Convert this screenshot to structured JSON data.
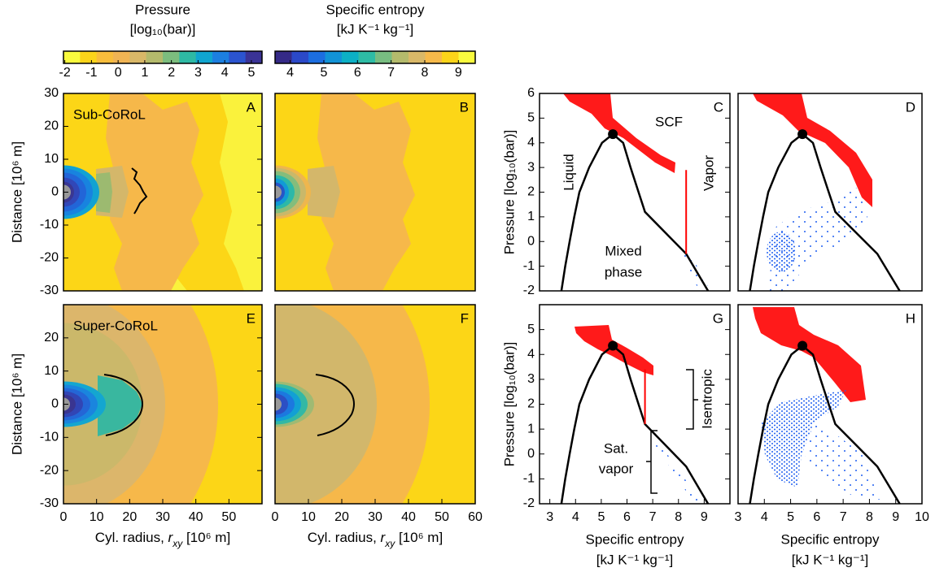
{
  "colorbars": [
    {
      "title": "Pressure",
      "unit": "[log₁₀(bar)]",
      "lim": [
        -2.05,
        5.4
      ],
      "ticks": [
        -2,
        -1,
        0,
        1,
        2,
        3,
        4,
        5
      ],
      "colors": [
        "#f9fb3e",
        "#fbd41a",
        "#f8bd3c",
        "#f0b454",
        "#d9b868",
        "#b4ba6c",
        "#7cbd7e",
        "#2eb9a4",
        "#10a5d0",
        "#1c7fe0",
        "#2b54cf",
        "#3a3396"
      ]
    },
    {
      "title": "Specific entropy",
      "unit": "[kJ K⁻¹ kg⁻¹]",
      "lim": [
        3.55,
        9.5
      ],
      "ticks": [
        4,
        5,
        6,
        7,
        8,
        9
      ],
      "colors": [
        "#352a87",
        "#2b49c8",
        "#1c6ee0",
        "#1293d6",
        "#0cb0c5",
        "#2ebca5",
        "#78bd81",
        "#b4ba6c",
        "#d9b868",
        "#f6b94a",
        "#fbd41a",
        "#f9fb3e"
      ]
    }
  ],
  "chart_data": [
    {
      "type": "contour",
      "label": "A",
      "annotation": "Sub-CoRoL",
      "xlim": [
        0,
        60
      ],
      "ylim": [
        -30,
        30
      ],
      "yticks": [
        -30,
        -20,
        -10,
        0,
        10,
        20,
        30
      ],
      "ylabel": "Distance [10⁶ m]"
    },
    {
      "type": "contour",
      "label": "B",
      "xlim": [
        0,
        60
      ],
      "ylim": [
        -30,
        30
      ]
    },
    {
      "type": "contour",
      "label": "E",
      "annotation": "Super-CoRoL",
      "xlim": [
        0,
        60
      ],
      "ylim": [
        -30,
        30
      ],
      "xticks": [
        0,
        10,
        20,
        30,
        40,
        50
      ],
      "yticks": [
        -30,
        -20,
        -10,
        0,
        10,
        20
      ],
      "ylabel": "Distance [10⁶ m]",
      "xlabel": [
        "Cyl. radius, ",
        "r",
        "xy",
        " [10⁶ m]"
      ]
    },
    {
      "type": "contour",
      "label": "F",
      "xlim": [
        0,
        60
      ],
      "ylim": [
        -30,
        30
      ],
      "xticks": [
        0,
        10,
        20,
        30,
        40,
        50,
        60
      ],
      "xlabel": [
        "Cyl. radius, ",
        "r",
        "xy",
        " [10⁶ m]"
      ]
    },
    {
      "type": "scatter",
      "label": "C",
      "xlim": [
        2.6,
        10
      ],
      "ylim": [
        -2,
        6
      ],
      "yticks": [
        -2,
        -1,
        0,
        1,
        2,
        3,
        4,
        5,
        6
      ],
      "ylabel": "Pressure [log₁₀(bar)]",
      "annotations": [
        "SCF",
        "Liquid",
        "Vapor",
        "Mixed",
        "phase"
      ],
      "series": [
        {
          "color": "#000000",
          "x": [
            3.45,
            3.6,
            3.77,
            3.95,
            4.15,
            4.53,
            5.03,
            5.45,
            5.85,
            6.14,
            6.45,
            6.7,
            7.5,
            8.3,
            9.15
          ],
          "y": [
            -2,
            -1,
            0,
            1,
            2,
            3,
            4,
            4.35,
            4,
            3,
            2,
            1.2,
            0.35,
            -0.5,
            -2
          ]
        },
        {
          "color": "#ff0000",
          "x": [
            8.3,
            8.3
          ],
          "y": [
            2.9,
            -0.5
          ]
        }
      ],
      "critical_point": [
        5.45,
        4.35
      ]
    },
    {
      "type": "scatter",
      "label": "D",
      "xlim": [
        3,
        10
      ],
      "ylim": [
        -2,
        6
      ],
      "series": [
        {
          "color": "#000000",
          "x": [
            3.45,
            3.6,
            3.77,
            3.95,
            4.15,
            4.53,
            5.03,
            5.45,
            5.85,
            6.14,
            6.45,
            6.7,
            7.5,
            8.3,
            9.15
          ],
          "y": [
            -2,
            -1,
            0,
            1,
            2,
            3,
            4,
            4.35,
            4,
            3,
            2,
            1.2,
            0.35,
            -0.5,
            -2
          ]
        }
      ],
      "critical_point": [
        5.45,
        4.35
      ]
    },
    {
      "type": "scatter",
      "label": "G",
      "xlim": [
        2.6,
        10
      ],
      "ylim": [
        -2,
        6
      ],
      "xticks": [
        3,
        4,
        5,
        6,
        7,
        8,
        9
      ],
      "yticks": [
        -2,
        -1,
        0,
        1,
        2,
        3,
        4,
        5
      ],
      "ylabel": "Pressure [log₁₀(bar)]",
      "xlabel": [
        "Specific entropy",
        "[kJ K⁻¹ kg⁻¹]"
      ],
      "annotations": [
        "Isentropic",
        "Sat.",
        "vapor"
      ],
      "series": [
        {
          "color": "#000000",
          "x": [
            3.45,
            3.6,
            3.77,
            3.95,
            4.15,
            4.53,
            5.03,
            5.45,
            5.85,
            6.14,
            6.45,
            6.7,
            7.5,
            8.3,
            9.15
          ],
          "y": [
            -2,
            -1,
            0,
            1,
            2,
            3,
            4,
            4.35,
            4,
            3,
            2,
            1.2,
            0.35,
            -0.5,
            -2
          ]
        },
        {
          "color": "#ff0000",
          "x": [
            6.7,
            6.7
          ],
          "y": [
            3.4,
            1.2
          ]
        }
      ],
      "critical_point": [
        5.45,
        4.35
      ]
    },
    {
      "type": "scatter",
      "label": "H",
      "xlim": [
        3,
        10
      ],
      "ylim": [
        -2,
        6
      ],
      "xticks": [
        3,
        4,
        5,
        6,
        7,
        8,
        9,
        10
      ],
      "xlabel": [
        "Specific entropy",
        "[kJ K⁻¹ kg⁻¹]"
      ],
      "series": [
        {
          "color": "#000000",
          "x": [
            3.45,
            3.6,
            3.77,
            3.95,
            4.15,
            4.53,
            5.03,
            5.45,
            5.85,
            6.14,
            6.45,
            6.7,
            7.5,
            8.3,
            9.15
          ],
          "y": [
            -2,
            -1,
            0,
            1,
            2,
            3,
            4,
            4.35,
            4,
            3,
            2,
            1.2,
            0.35,
            -0.5,
            -2
          ]
        }
      ],
      "critical_point": [
        5.45,
        4.35
      ]
    }
  ]
}
